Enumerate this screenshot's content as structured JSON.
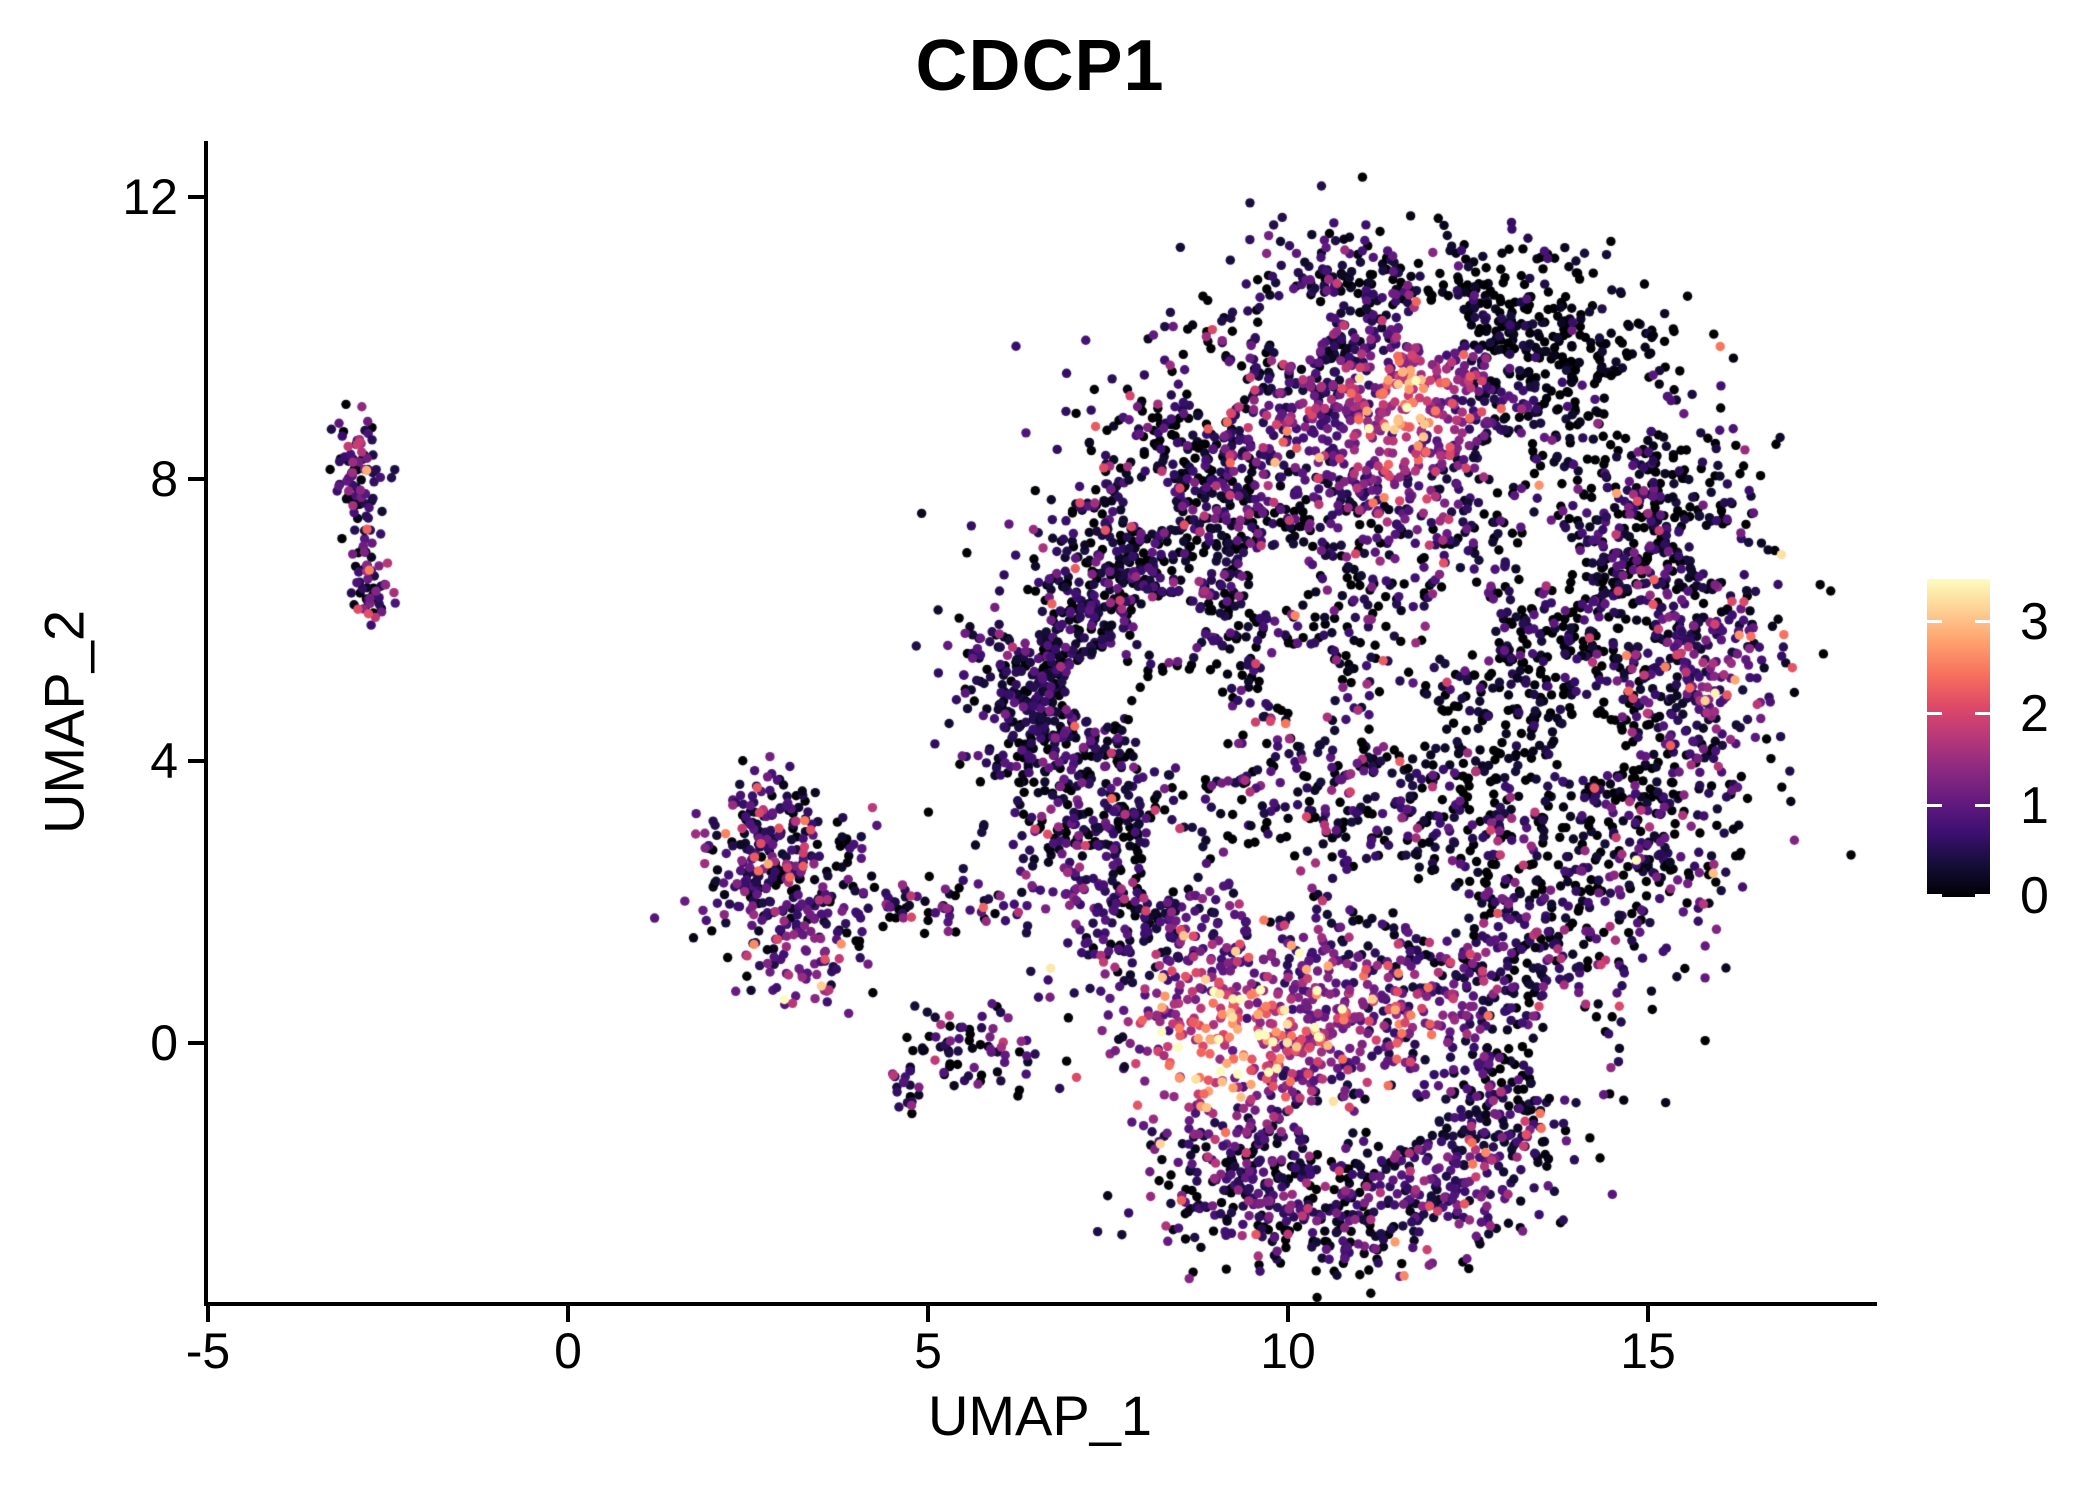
{
  "title": "CDCP1",
  "axes": {
    "x": {
      "label": "UMAP_1",
      "ticks": [
        -5,
        0,
        5,
        10,
        15
      ],
      "range": [
        -5,
        18.1
      ]
    },
    "y": {
      "label": "UMAP_2",
      "ticks": [
        0,
        4,
        8,
        12
      ],
      "range": [
        -3.67,
        12.77
      ]
    }
  },
  "legend": {
    "tick_labels": [
      "0",
      "1",
      "2",
      "3"
    ]
  },
  "colors": {
    "background": "#ffffff",
    "axis": "#000000",
    "text": "#000000",
    "legend_tick": "#ffffff"
  },
  "chart_data": {
    "type": "scatter",
    "title": "CDCP1",
    "xlabel": "UMAP_1",
    "ylabel": "UMAP_2",
    "xlim": [
      -5,
      18.1
    ],
    "ylim": [
      -3.67,
      12.77
    ],
    "grid": false,
    "legend_position": "right",
    "colorbar": {
      "ticks": [
        0,
        1,
        2,
        3
      ],
      "vmin": 0,
      "vmax": 3.46,
      "colormap": "magma"
    },
    "colormap_stops": [
      [
        0.0,
        "#000004"
      ],
      [
        0.1,
        "#140e36"
      ],
      [
        0.2,
        "#3b0f70"
      ],
      [
        0.3,
        "#641a80"
      ],
      [
        0.4,
        "#8c2981"
      ],
      [
        0.5,
        "#b73779"
      ],
      [
        0.6,
        "#de4968"
      ],
      [
        0.7,
        "#f7705c"
      ],
      [
        0.8,
        "#fe9f6d"
      ],
      [
        0.9,
        "#fecf92"
      ],
      [
        1.0,
        "#fcfdbf"
      ]
    ],
    "point_radius_px": 4.7,
    "seed": 7,
    "cluster_fields": [
      "cx",
      "cy",
      "sdx",
      "sdy",
      "n",
      "p_zero",
      "mean_expr"
    ],
    "clusters": [
      [
        -2.92,
        8.05,
        0.17,
        0.48,
        85,
        0.1,
        0.85
      ],
      [
        -2.76,
        6.45,
        0.14,
        0.26,
        48,
        0.12,
        0.9
      ],
      [
        -2.85,
        7.25,
        0.1,
        0.22,
        10,
        0.2,
        0.7
      ],
      [
        3.0,
        2.5,
        0.5,
        0.55,
        240,
        0.15,
        0.8
      ],
      [
        2.7,
        3.2,
        0.3,
        0.3,
        60,
        0.12,
        0.8
      ],
      [
        4.7,
        2.0,
        0.85,
        0.2,
        85,
        0.25,
        0.9
      ],
      [
        3.3,
        1.15,
        0.45,
        0.35,
        75,
        0.3,
        0.8
      ],
      [
        5.6,
        -0.1,
        0.5,
        0.27,
        70,
        0.35,
        0.7
      ],
      [
        4.75,
        -0.62,
        0.15,
        0.17,
        18,
        0.3,
        0.8
      ],
      [
        6.6,
        4.9,
        0.6,
        0.8,
        470,
        0.18,
        0.55
      ],
      [
        7.6,
        6.6,
        0.6,
        0.65,
        260,
        0.25,
        0.6
      ],
      [
        8.6,
        8.2,
        0.8,
        0.8,
        300,
        0.3,
        0.7
      ],
      [
        10.3,
        9.6,
        0.9,
        0.8,
        320,
        0.3,
        0.7
      ],
      [
        12.0,
        9.0,
        0.8,
        0.9,
        300,
        0.22,
        0.85
      ],
      [
        13.7,
        9.6,
        0.8,
        0.75,
        270,
        0.48,
        0.45
      ],
      [
        15.0,
        7.8,
        0.75,
        0.9,
        280,
        0.4,
        0.6
      ],
      [
        15.7,
        5.6,
        0.62,
        1.0,
        300,
        0.3,
        0.8
      ],
      [
        15.0,
        3.2,
        0.7,
        0.9,
        260,
        0.35,
        0.7
      ],
      [
        13.5,
        1.4,
        0.8,
        0.8,
        260,
        0.3,
        0.7
      ],
      [
        11.5,
        0.6,
        1.0,
        0.65,
        300,
        0.25,
        0.8
      ],
      [
        9.6,
        0.5,
        0.9,
        0.6,
        330,
        0.15,
        1.0
      ],
      [
        8.1,
        1.6,
        0.7,
        0.7,
        240,
        0.25,
        0.7
      ],
      [
        7.3,
        3.2,
        0.6,
        0.7,
        220,
        0.25,
        0.6
      ],
      [
        9.3,
        5.4,
        1.2,
        1.2,
        240,
        0.3,
        0.7
      ],
      [
        11.6,
        6.4,
        1.3,
        1.2,
        280,
        0.35,
        0.7
      ],
      [
        13.4,
        5.0,
        1.0,
        1.0,
        240,
        0.42,
        0.6
      ],
      [
        10.6,
        3.2,
        1.2,
        1.0,
        260,
        0.3,
        0.7
      ],
      [
        12.6,
        3.2,
        0.9,
        0.9,
        200,
        0.35,
        0.6
      ],
      [
        9.0,
        6.9,
        0.9,
        0.9,
        200,
        0.3,
        0.7
      ],
      [
        10.8,
        8.0,
        0.9,
        0.9,
        220,
        0.3,
        0.8
      ],
      [
        14.3,
        6.3,
        0.8,
        0.8,
        200,
        0.4,
        0.6
      ],
      [
        10.9,
        10.7,
        0.7,
        0.5,
        140,
        0.35,
        0.6
      ],
      [
        12.6,
        10.4,
        0.6,
        0.5,
        120,
        0.45,
        0.5
      ],
      [
        9.4,
        -1.9,
        0.75,
        0.6,
        240,
        0.25,
        0.8
      ],
      [
        11.0,
        -2.3,
        0.9,
        0.55,
        260,
        0.3,
        0.7
      ],
      [
        12.6,
        -1.6,
        0.65,
        0.6,
        180,
        0.35,
        0.7
      ],
      [
        10.3,
        -0.9,
        1.2,
        0.5,
        110,
        0.3,
        0.8
      ],
      [
        13.3,
        -0.6,
        0.5,
        0.5,
        90,
        0.4,
        0.6
      ]
    ],
    "void_fields": [
      "cx",
      "cy",
      "r"
    ],
    "voids": [
      [
        7.35,
        5.05,
        0.45
      ],
      [
        8.5,
        4.6,
        0.7
      ],
      [
        10.2,
        5.15,
        0.5
      ],
      [
        11.6,
        4.6,
        0.45
      ],
      [
        9.9,
        6.6,
        0.45
      ],
      [
        12.4,
        6.0,
        0.5
      ],
      [
        13.6,
        6.9,
        0.4
      ],
      [
        10.1,
        10.2,
        0.45
      ],
      [
        12.1,
        10.15,
        0.4
      ],
      [
        8.4,
        2.6,
        0.4
      ],
      [
        12.0,
        1.9,
        0.45
      ],
      [
        14.2,
        4.2,
        0.45
      ],
      [
        13.9,
        -0.2,
        0.55
      ],
      [
        11.5,
        -1.05,
        0.42
      ],
      [
        10.55,
        -1.2,
        0.35
      ],
      [
        8.1,
        7.6,
        0.35
      ],
      [
        14.8,
        9.0,
        0.4
      ],
      [
        16.05,
        6.9,
        0.35
      ],
      [
        9.0,
        9.3,
        0.4
      ],
      [
        9.7,
        2.3,
        0.45
      ],
      [
        11.2,
        2.2,
        0.4
      ],
      [
        13.0,
        8.3,
        0.35
      ],
      [
        8.3,
        5.9,
        0.45
      ],
      [
        6.3,
        6.0,
        0.3
      ]
    ],
    "hotspot_fields": [
      "cx",
      "cy",
      "r",
      "boost"
    ],
    "hotspots": [
      [
        11.55,
        8.8,
        0.85,
        1.9
      ],
      [
        11.95,
        9.6,
        0.5,
        1.3
      ],
      [
        9.2,
        0.15,
        1.1,
        1.8
      ],
      [
        8.5,
        -0.5,
        0.6,
        1.3
      ],
      [
        10.9,
        0.3,
        0.9,
        0.9
      ],
      [
        16.1,
        5.2,
        0.7,
        0.9
      ],
      [
        6.7,
        1.95,
        0.55,
        1.1
      ],
      [
        3.3,
        0.95,
        0.5,
        1.2
      ],
      [
        12.5,
        -1.8,
        0.9,
        0.6
      ],
      [
        9.9,
        8.7,
        0.6,
        0.8
      ],
      [
        12.3,
        0.4,
        0.5,
        0.9
      ]
    ],
    "coldspot_fields": [
      "cx",
      "cy",
      "r",
      "factor"
    ],
    "coldspots": [
      [
        14.4,
        9.9,
        1.4,
        0.35
      ],
      [
        13.0,
        4.6,
        1.2,
        0.55
      ],
      [
        15.4,
        8.7,
        0.9,
        0.5
      ],
      [
        12.8,
        10.4,
        0.9,
        0.4
      ]
    ]
  }
}
